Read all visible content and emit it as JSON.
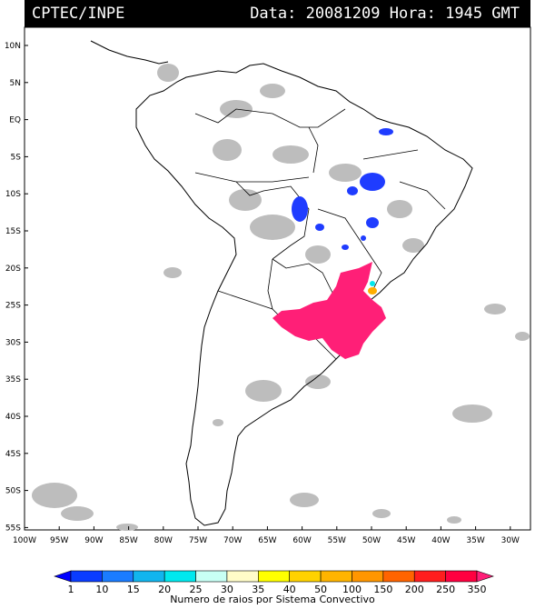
{
  "header": {
    "agency": "CPTEC/INPE",
    "datetime": "Data: 20081209 Hora: 1945 GMT"
  },
  "map": {
    "lat_labels": [
      "10N",
      "5N",
      "EQ",
      "5S",
      "10S",
      "15S",
      "20S",
      "25S",
      "30S",
      "35S",
      "40S",
      "45S",
      "50S",
      "55S"
    ],
    "lon_labels": [
      "100W",
      "95W",
      "90W",
      "85W",
      "80W",
      "75W",
      "70W",
      "65W",
      "60W",
      "55W",
      "50W",
      "45W",
      "40W",
      "35W",
      "30W"
    ],
    "colors": {
      "background": "#ffffff",
      "coastline": "#000000",
      "cloud_gray": "#bdbdbd",
      "high_activity": "#ff1f77",
      "low_activity_blue": "#1f3cff"
    }
  },
  "colorbar": {
    "levels": [
      "1",
      "10",
      "15",
      "20",
      "25",
      "30",
      "35",
      "40",
      "50",
      "100",
      "150",
      "200",
      "250",
      "350"
    ],
    "colors": [
      "#0000ff",
      "#0a3cff",
      "#1a7cff",
      "#11b5ee",
      "#00e8ee",
      "#c8fff4",
      "#fffcc8",
      "#ffff00",
      "#ffd200",
      "#ffb400",
      "#ff9600",
      "#ff6400",
      "#ff1e1e",
      "#ff0040",
      "#ff1e78"
    ],
    "caption": "Numero de raios por Sistema Convectivo"
  }
}
